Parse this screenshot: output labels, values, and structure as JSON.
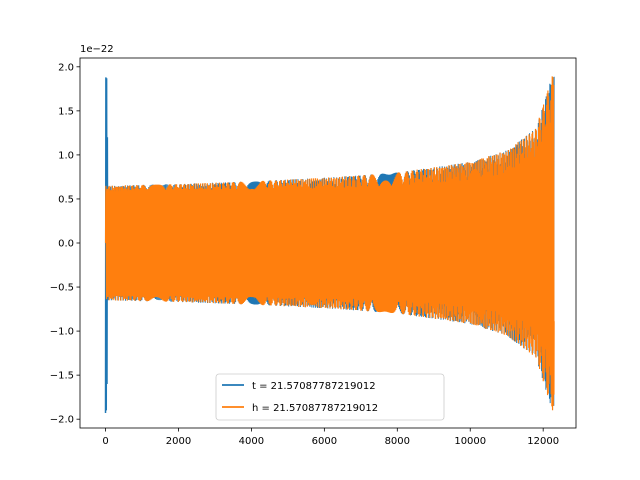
{
  "chart_data": {
    "type": "line",
    "title": "",
    "xlabel": "",
    "ylabel": "",
    "y_scale_label": "1e−22",
    "xlim": [
      -700,
      12900
    ],
    "ylim": [
      -2.1,
      2.1
    ],
    "x_ticks": [
      0,
      2000,
      4000,
      6000,
      8000,
      10000,
      12000
    ],
    "x_tick_labels": [
      "0",
      "2000",
      "4000",
      "6000",
      "8000",
      "10000",
      "12000"
    ],
    "y_ticks": [
      -2.0,
      -1.5,
      -1.0,
      -0.5,
      0.0,
      0.5,
      1.0,
      1.5,
      2.0
    ],
    "y_tick_labels": [
      "−2.0",
      "−1.5",
      "−1.0",
      "−0.5",
      "0.0",
      "0.5",
      "1.0",
      "1.5",
      "2.0"
    ],
    "grid": false,
    "legend_position": "bottom-center",
    "series": [
      {
        "name": "t = 21.57087787219012",
        "color": "#1f77b4",
        "description_points": {
          "x": [
            0,
            10,
            20,
            30,
            40,
            50,
            60
          ],
          "y": [
            -1.93,
            1.88,
            -1.9,
            1.87,
            -1.6,
            1.2,
            -0.65
          ]
        },
        "envelope": {
          "x": [
            0,
            60,
            2000,
            4000,
            6000,
            8000,
            10000,
            11000,
            11800,
            12250,
            12300
          ],
          "amp": [
            1.9,
            0.65,
            0.67,
            0.7,
            0.74,
            0.8,
            0.92,
            1.05,
            1.3,
            1.9,
            1.9
          ]
        }
      },
      {
        "name": "h = 21.57087787219012",
        "color": "#ff7f0e",
        "envelope": {
          "x": [
            0,
            2000,
            4000,
            6000,
            8000,
            10000,
            11000,
            11800,
            12250,
            12300
          ],
          "amp": [
            0.65,
            0.67,
            0.7,
            0.74,
            0.8,
            0.92,
            1.05,
            1.3,
            1.9,
            1.9
          ]
        }
      }
    ]
  }
}
